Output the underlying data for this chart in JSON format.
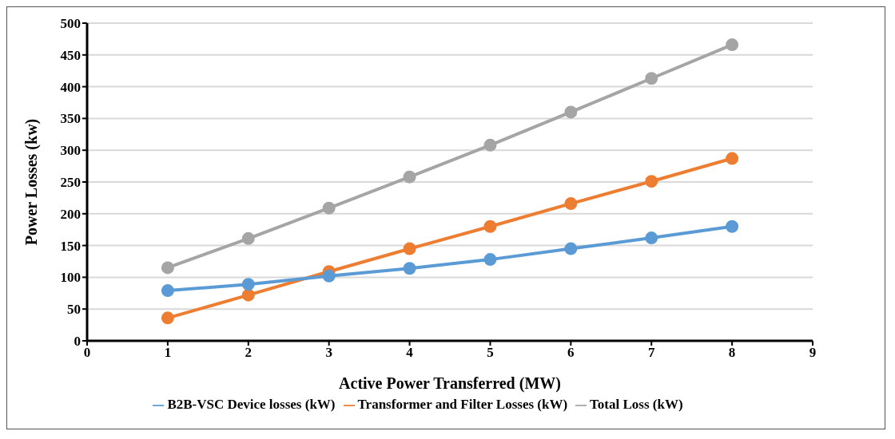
{
  "chart_data": {
    "type": "line",
    "xlabel": "Active Power Transferred  (MW)",
    "ylabel": "Power Losses (kw)",
    "x": [
      1,
      2,
      3,
      4,
      5,
      6,
      7,
      8
    ],
    "series": [
      {
        "name": "B2B-VSC Device losses (kW)",
        "color": "#5b9bd5",
        "values": [
          79,
          89,
          102,
          114,
          128,
          145,
          162,
          180
        ]
      },
      {
        "name": "Transformer and Filter Losses (kW)",
        "color": "#ed7d31",
        "values": [
          36,
          72,
          109,
          145,
          180,
          216,
          251,
          287
        ]
      },
      {
        "name": "Total Loss (kW)",
        "color": "#a5a5a5",
        "values": [
          115,
          161,
          209,
          258,
          308,
          360,
          413,
          466
        ]
      }
    ],
    "xlim": [
      0,
      9
    ],
    "xticks": [
      0,
      1,
      2,
      3,
      4,
      5,
      6,
      7,
      8,
      9
    ],
    "ylim": [
      0,
      500
    ],
    "yticks": [
      0,
      50,
      100,
      150,
      200,
      250,
      300,
      350,
      400,
      450,
      500
    ],
    "grid": "y",
    "legend": "bottom",
    "marker": "circle",
    "line_style": "solid"
  }
}
